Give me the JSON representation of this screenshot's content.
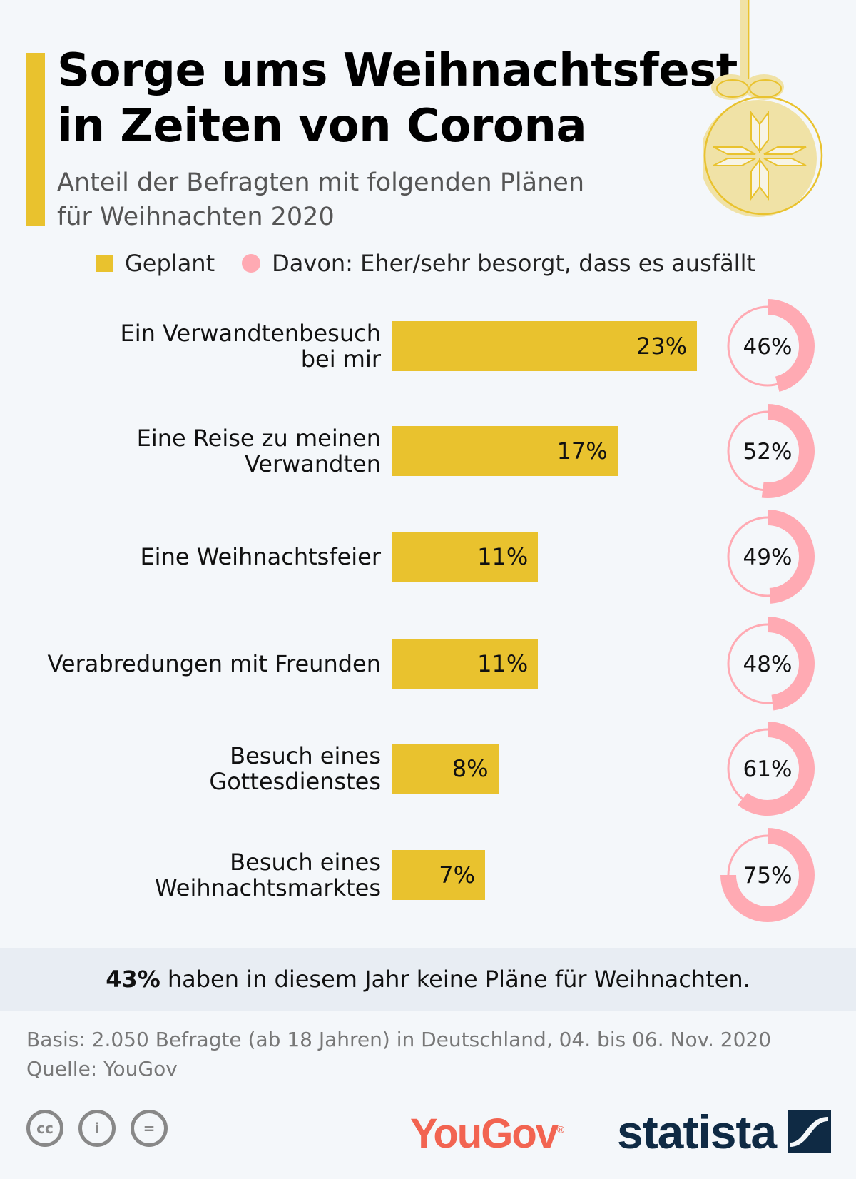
{
  "header": {
    "title_line1": "Sorge ums Weihnachtsfest",
    "title_line2": "in Zeiten von Corona",
    "subtitle_line1": "Anteil der Befragten mit folgenden Plänen",
    "subtitle_line2": "für Weihnachten 2020"
  },
  "chart_data": {
    "type": "bar",
    "categories": [
      [
        "Ein Verwandtenbesuch",
        "bei mir"
      ],
      [
        "Eine Reise zu meinen",
        "Verwandten"
      ],
      [
        "Eine Weihnachtsfeier"
      ],
      [
        "Verabredungen mit Freunden"
      ],
      [
        "Besuch eines",
        "Gottesdienstes"
      ],
      [
        "Besuch eines",
        "Weihnachtsmarktes"
      ]
    ],
    "series": [
      {
        "name": "Geplant",
        "values": [
          23,
          17,
          11,
          11,
          8,
          7
        ],
        "labels": [
          "23%",
          "17%",
          "11%",
          "11%",
          "8%",
          "7%"
        ],
        "color": "#e9c22e"
      },
      {
        "name": "Davon: Eher/sehr besorgt, dass es ausfällt",
        "values": [
          46,
          52,
          49,
          48,
          61,
          75
        ],
        "labels": [
          "46%",
          "52%",
          "49%",
          "48%",
          "61%",
          "75%"
        ],
        "color": "#ffaab3",
        "type": "donut"
      }
    ],
    "legend": "top"
  },
  "banner": {
    "bold": "43%",
    "text": "haben in diesem Jahr keine Pläne für Weihnachten."
  },
  "footer": {
    "basis": "Basis: 2.050 Befragte (ab 18 Jahren) in Deutschland, 04. bis 06. Nov. 2020",
    "source": "Quelle: YouGov",
    "logo_yougov": "YouGov",
    "logo_statista": "statista"
  }
}
